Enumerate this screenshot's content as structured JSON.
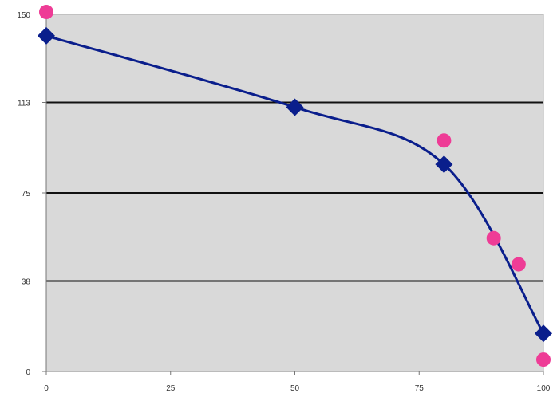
{
  "chart_data": {
    "type": "scatter",
    "title": "",
    "xlabel": "",
    "ylabel": "",
    "xlim": [
      0,
      100
    ],
    "ylim": [
      0,
      150
    ],
    "x_ticks": [
      0,
      25,
      50,
      75,
      100
    ],
    "x_tick_labels": [
      "0",
      "25",
      "50",
      "75",
      "100"
    ],
    "y_ticks": [
      0,
      38,
      75,
      113,
      150
    ],
    "y_tick_labels": [
      "0",
      "38",
      "75",
      "113",
      "150"
    ],
    "grid": "horizontal",
    "legend": "none",
    "series": [
      {
        "marker": "diamond",
        "line": "smooth",
        "color": "#0a1e8c",
        "points": [
          {
            "x": 0,
            "y": 141
          },
          {
            "x": 50,
            "y": 111
          },
          {
            "x": 80,
            "y": 87
          },
          {
            "x": 100,
            "y": 16
          }
        ]
      },
      {
        "marker": "circle",
        "line": "none",
        "color": "#ee3c96",
        "points": [
          {
            "x": 0,
            "y": 151
          },
          {
            "x": 80,
            "y": 97
          },
          {
            "x": 90,
            "y": 56
          },
          {
            "x": 95,
            "y": 45
          },
          {
            "x": 100,
            "y": 5
          }
        ]
      }
    ],
    "colors": {
      "plot_background": "#d9d9d9",
      "grid_line": "#111111",
      "axis": "#777777"
    }
  }
}
